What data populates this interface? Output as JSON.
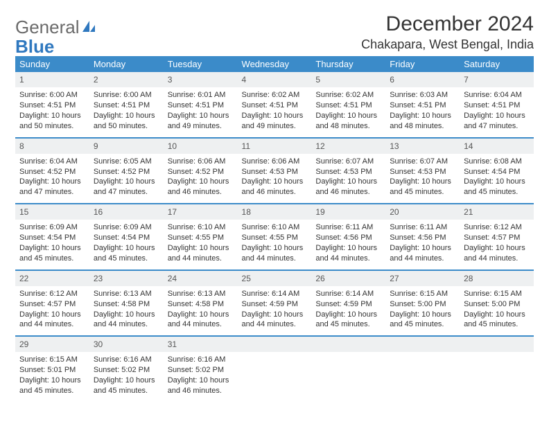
{
  "logo": {
    "text_general": "General",
    "text_blue": "Blue"
  },
  "title": "December 2024",
  "location": "Chakapara, West Bengal, India",
  "colors": {
    "header_bg": "#3b8bc9",
    "header_text": "#ffffff",
    "daynum_bg": "#eef0f1",
    "border": "#3b8bc9",
    "logo_gray": "#6a6a6a",
    "logo_blue": "#2f78bf"
  },
  "day_headers": [
    "Sunday",
    "Monday",
    "Tuesday",
    "Wednesday",
    "Thursday",
    "Friday",
    "Saturday"
  ],
  "weeks": [
    [
      {
        "n": "1",
        "sr": "6:00 AM",
        "ss": "4:51 PM",
        "dl": "10 hours and 50 minutes."
      },
      {
        "n": "2",
        "sr": "6:00 AM",
        "ss": "4:51 PM",
        "dl": "10 hours and 50 minutes."
      },
      {
        "n": "3",
        "sr": "6:01 AM",
        "ss": "4:51 PM",
        "dl": "10 hours and 49 minutes."
      },
      {
        "n": "4",
        "sr": "6:02 AM",
        "ss": "4:51 PM",
        "dl": "10 hours and 49 minutes."
      },
      {
        "n": "5",
        "sr": "6:02 AM",
        "ss": "4:51 PM",
        "dl": "10 hours and 48 minutes."
      },
      {
        "n": "6",
        "sr": "6:03 AM",
        "ss": "4:51 PM",
        "dl": "10 hours and 48 minutes."
      },
      {
        "n": "7",
        "sr": "6:04 AM",
        "ss": "4:51 PM",
        "dl": "10 hours and 47 minutes."
      }
    ],
    [
      {
        "n": "8",
        "sr": "6:04 AM",
        "ss": "4:52 PM",
        "dl": "10 hours and 47 minutes."
      },
      {
        "n": "9",
        "sr": "6:05 AM",
        "ss": "4:52 PM",
        "dl": "10 hours and 47 minutes."
      },
      {
        "n": "10",
        "sr": "6:06 AM",
        "ss": "4:52 PM",
        "dl": "10 hours and 46 minutes."
      },
      {
        "n": "11",
        "sr": "6:06 AM",
        "ss": "4:53 PM",
        "dl": "10 hours and 46 minutes."
      },
      {
        "n": "12",
        "sr": "6:07 AM",
        "ss": "4:53 PM",
        "dl": "10 hours and 46 minutes."
      },
      {
        "n": "13",
        "sr": "6:07 AM",
        "ss": "4:53 PM",
        "dl": "10 hours and 45 minutes."
      },
      {
        "n": "14",
        "sr": "6:08 AM",
        "ss": "4:54 PM",
        "dl": "10 hours and 45 minutes."
      }
    ],
    [
      {
        "n": "15",
        "sr": "6:09 AM",
        "ss": "4:54 PM",
        "dl": "10 hours and 45 minutes."
      },
      {
        "n": "16",
        "sr": "6:09 AM",
        "ss": "4:54 PM",
        "dl": "10 hours and 45 minutes."
      },
      {
        "n": "17",
        "sr": "6:10 AM",
        "ss": "4:55 PM",
        "dl": "10 hours and 44 minutes."
      },
      {
        "n": "18",
        "sr": "6:10 AM",
        "ss": "4:55 PM",
        "dl": "10 hours and 44 minutes."
      },
      {
        "n": "19",
        "sr": "6:11 AM",
        "ss": "4:56 PM",
        "dl": "10 hours and 44 minutes."
      },
      {
        "n": "20",
        "sr": "6:11 AM",
        "ss": "4:56 PM",
        "dl": "10 hours and 44 minutes."
      },
      {
        "n": "21",
        "sr": "6:12 AM",
        "ss": "4:57 PM",
        "dl": "10 hours and 44 minutes."
      }
    ],
    [
      {
        "n": "22",
        "sr": "6:12 AM",
        "ss": "4:57 PM",
        "dl": "10 hours and 44 minutes."
      },
      {
        "n": "23",
        "sr": "6:13 AM",
        "ss": "4:58 PM",
        "dl": "10 hours and 44 minutes."
      },
      {
        "n": "24",
        "sr": "6:13 AM",
        "ss": "4:58 PM",
        "dl": "10 hours and 44 minutes."
      },
      {
        "n": "25",
        "sr": "6:14 AM",
        "ss": "4:59 PM",
        "dl": "10 hours and 44 minutes."
      },
      {
        "n": "26",
        "sr": "6:14 AM",
        "ss": "4:59 PM",
        "dl": "10 hours and 45 minutes."
      },
      {
        "n": "27",
        "sr": "6:15 AM",
        "ss": "5:00 PM",
        "dl": "10 hours and 45 minutes."
      },
      {
        "n": "28",
        "sr": "6:15 AM",
        "ss": "5:00 PM",
        "dl": "10 hours and 45 minutes."
      }
    ],
    [
      {
        "n": "29",
        "sr": "6:15 AM",
        "ss": "5:01 PM",
        "dl": "10 hours and 45 minutes."
      },
      {
        "n": "30",
        "sr": "6:16 AM",
        "ss": "5:02 PM",
        "dl": "10 hours and 45 minutes."
      },
      {
        "n": "31",
        "sr": "6:16 AM",
        "ss": "5:02 PM",
        "dl": "10 hours and 46 minutes."
      },
      null,
      null,
      null,
      null
    ]
  ],
  "labels": {
    "sunrise": "Sunrise:",
    "sunset": "Sunset:",
    "daylight": "Daylight:"
  }
}
